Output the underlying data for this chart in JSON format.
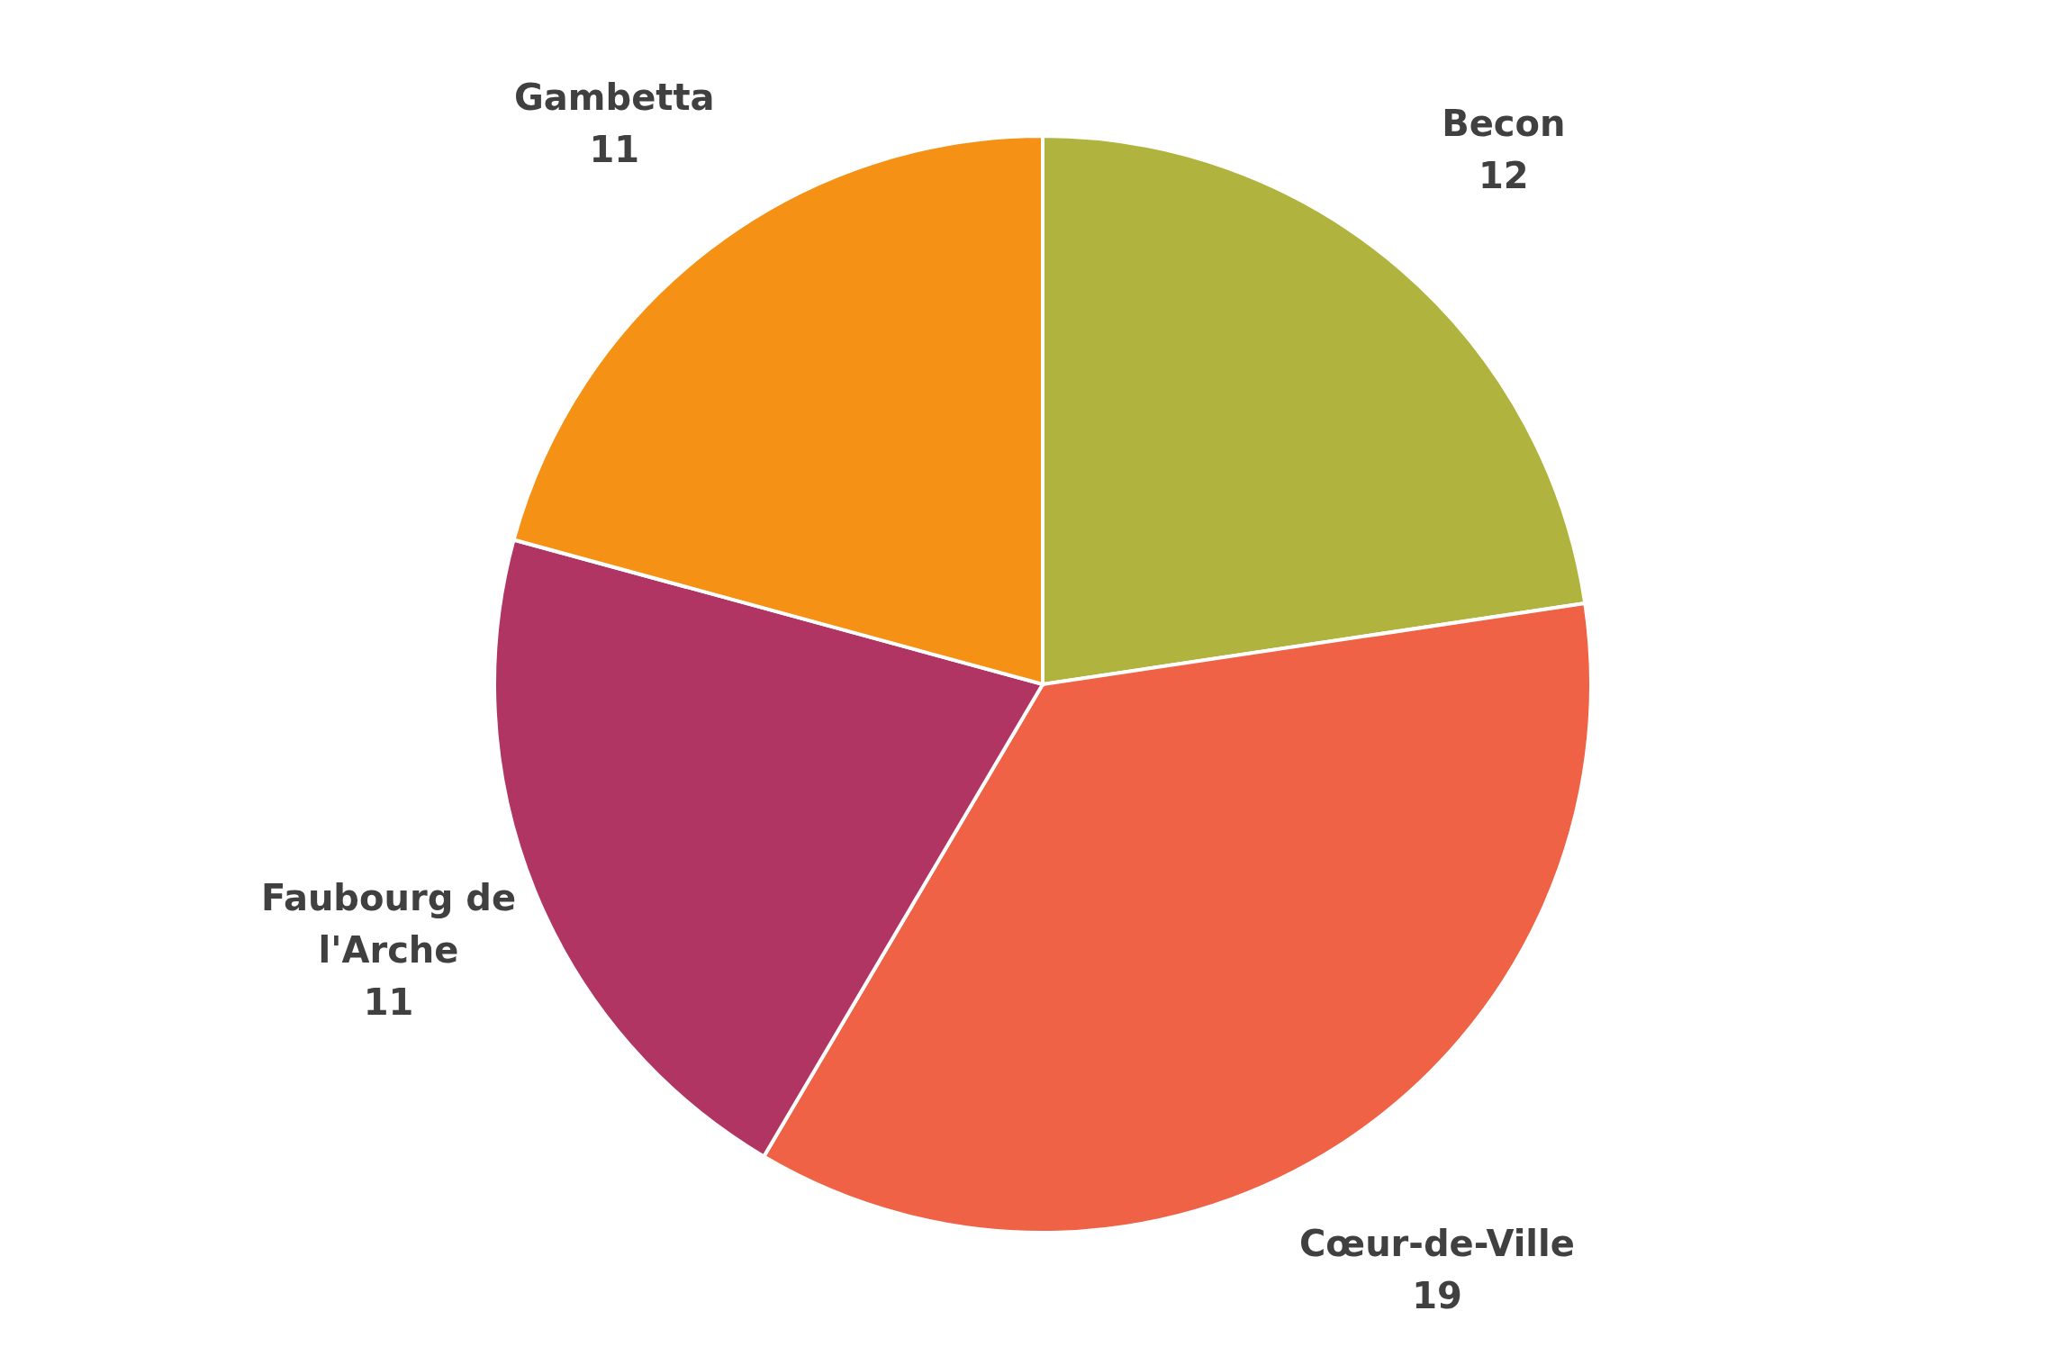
{
  "chart_data": {
    "type": "pie",
    "categories": [
      "Becon",
      "Cœur-de-Ville",
      "Faubourg de l'Arche",
      "Gambetta"
    ],
    "values": [
      12,
      19,
      11,
      11
    ],
    "colors": [
      "#b0b43f",
      "#ef6245",
      "#b13562",
      "#f59215"
    ],
    "data_labels": true,
    "legend": false
  }
}
